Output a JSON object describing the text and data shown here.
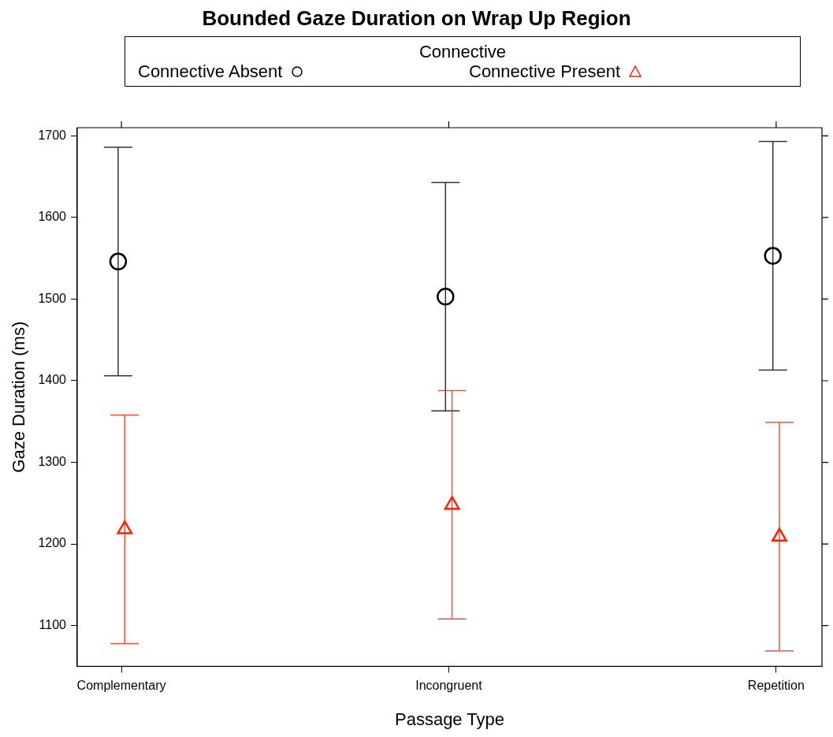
{
  "chart_data": {
    "type": "scatter",
    "title": "Bounded Gaze Duration on Wrap Up Region",
    "xlabel": "Passage Type",
    "ylabel": "Gaze Duration (ms)",
    "legend_title": "Connective",
    "legend": "top",
    "grid": false,
    "categories": [
      "Complementary",
      "Incongruent",
      "Repetition"
    ],
    "ylim": [
      1050,
      1710
    ],
    "yticks": [
      1100,
      1200,
      1300,
      1400,
      1500,
      1600,
      1700
    ],
    "series": [
      {
        "name": "Connective Absent",
        "color": "#000000",
        "marker": "circle",
        "values": [
          1546,
          1503,
          1553
        ],
        "errors": [
          140,
          140,
          140
        ]
      },
      {
        "name": "Connective Present",
        "color": "#ff2200",
        "marker": "triangle",
        "values": [
          1218,
          1248,
          1209
        ],
        "errors": [
          140,
          140,
          140
        ]
      }
    ]
  }
}
